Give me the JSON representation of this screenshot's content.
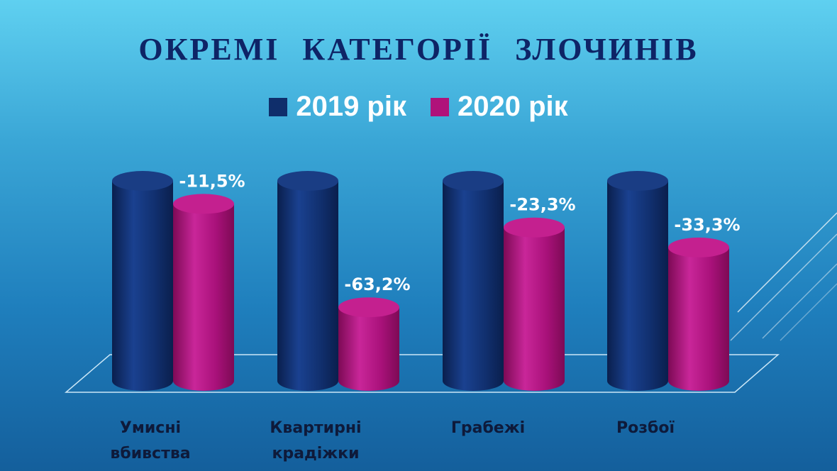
{
  "title": "ОКРЕМІ   КАТЕГОРІЇ   ЗЛОЧИНІВ",
  "legend": [
    {
      "label": "2019 рік",
      "color": "#0f2e6b"
    },
    {
      "label": "2020 рік",
      "color": "#b0127a"
    }
  ],
  "chart_data": {
    "type": "bar",
    "style": "3d-cylinder",
    "title": "ОКРЕМІ   КАТЕГОРІЇ   ЗЛОЧИНІВ",
    "categories": [
      [
        "Умисні",
        "вбивства"
      ],
      [
        "Квартирні",
        "крадіжки"
      ],
      [
        "Грабежі"
      ],
      [
        "Розбої"
      ]
    ],
    "series": [
      {
        "name": "2019 рік",
        "color": "#0f2e6b",
        "values": [
          100,
          100,
          100,
          100
        ]
      },
      {
        "name": "2020 рік",
        "color": "#b0127a",
        "values": [
          88.5,
          36.8,
          76.7,
          66.7
        ]
      }
    ],
    "value_unit": "% of 2019",
    "data_labels": [
      "-11,5%",
      "-63,2%",
      "-23,3%",
      "-33,3%"
    ],
    "legend_position": "top",
    "grid": false
  }
}
